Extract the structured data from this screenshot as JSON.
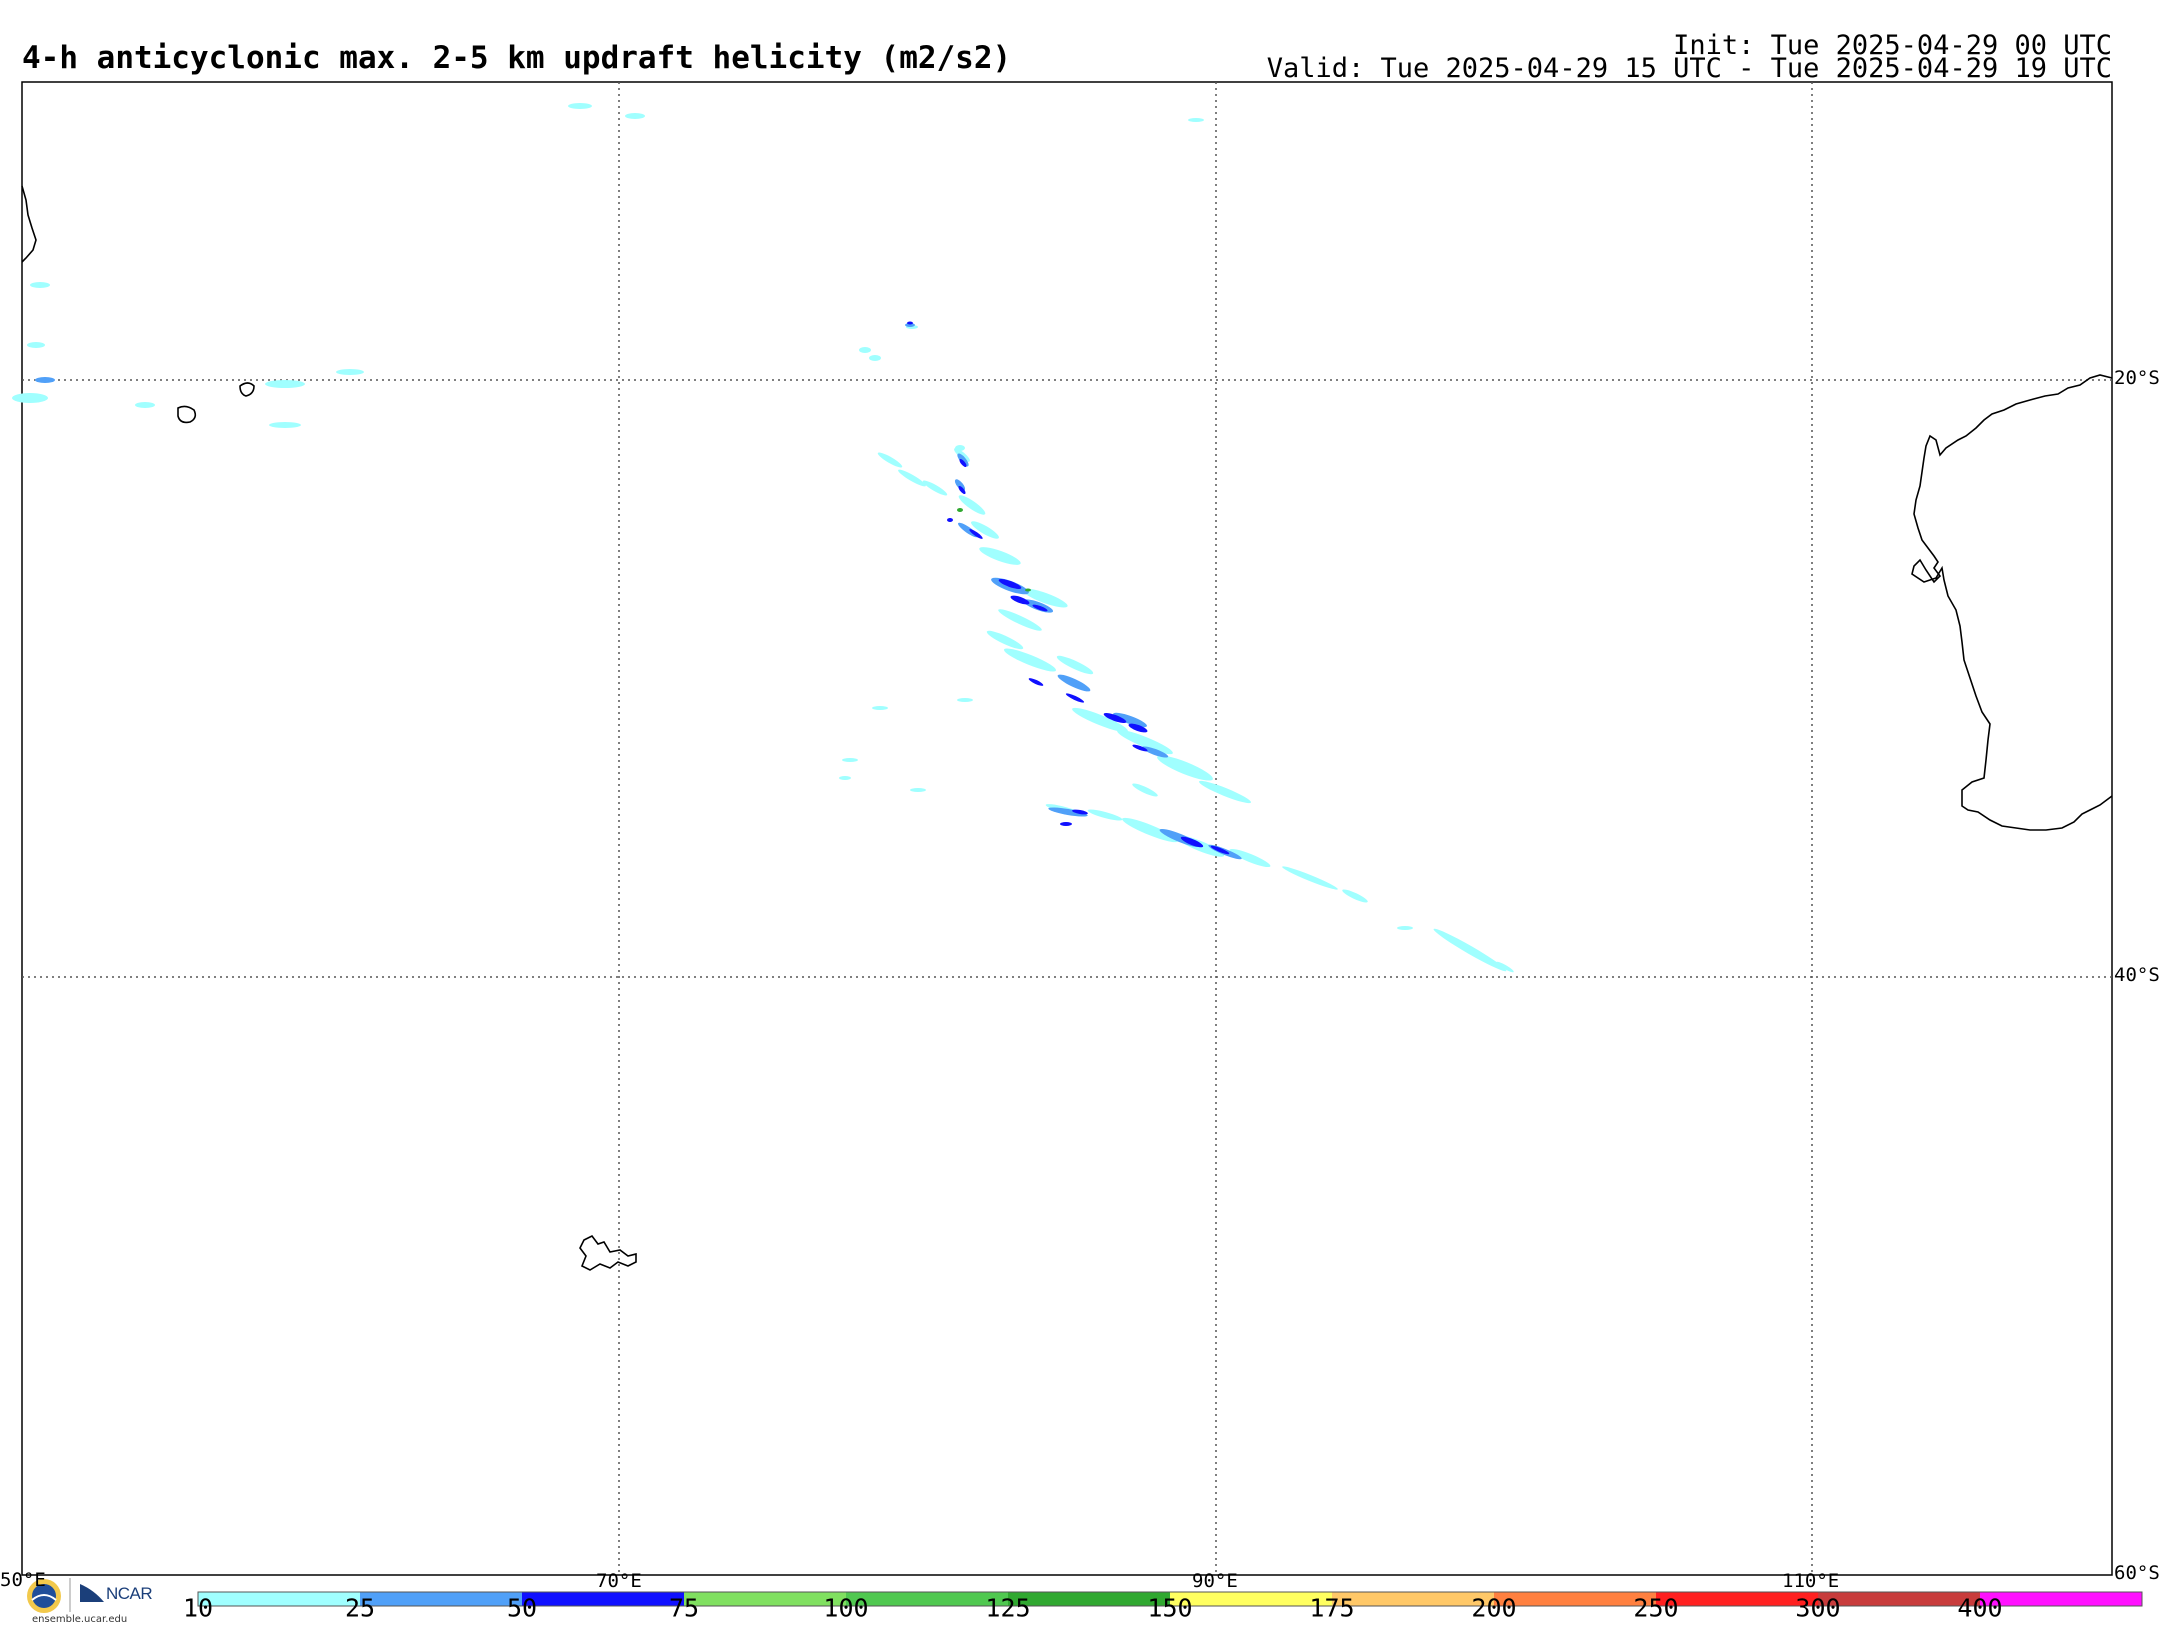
{
  "header": {
    "title": "4-h anticyclonic max. 2-5 km updraft helicity (m2/s2)",
    "init": "Init: Tue 2025-04-29 00 UTC",
    "valid": "Valid: Tue 2025-04-29 15 UTC - Tue 2025-04-29 19 UTC"
  },
  "map": {
    "lon_labels": [
      "50°E",
      "70°E",
      "90°E",
      "110°E"
    ],
    "lat_labels": [
      "20°S",
      "40°S",
      "60°S"
    ],
    "lon_range": [
      50,
      120
    ],
    "lat_range": [
      -10,
      -60
    ],
    "gridlines": true
  },
  "colorbar": {
    "labels": [
      "10",
      "25",
      "50",
      "75",
      "100",
      "125",
      "150",
      "175",
      "200",
      "250",
      "300",
      "400"
    ],
    "colors": [
      "#a0ffff",
      "#50a0f8",
      "#1010ff",
      "#80e060",
      "#50c850",
      "#30a830",
      "#ffff60",
      "#ffc868",
      "#ff8040",
      "#ff2020",
      "#c83c3c",
      "#ff10ff"
    ]
  },
  "logos": {
    "credit": "ensemble.ucar.edu",
    "ncar_text": "NCAR",
    "nsf_text": "NSF",
    "nsf_icon": "nsf-seal-icon",
    "ncar_icon": "ncar-logo-icon"
  }
}
